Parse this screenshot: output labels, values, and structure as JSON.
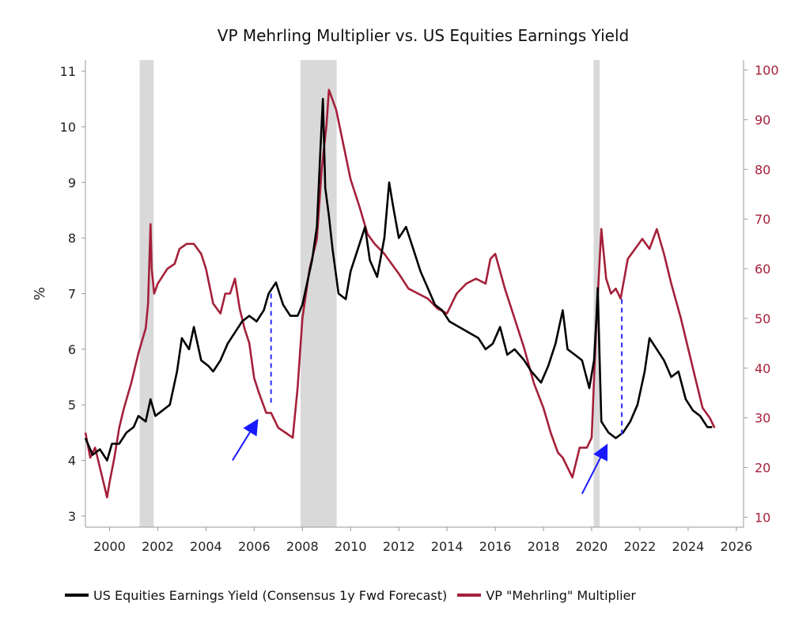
{
  "chart_data": {
    "type": "line",
    "title": "VP Mehrling Multiplier vs. US Equities Earnings Yield",
    "ylabel": "%",
    "y2label": "",
    "ylim": [
      2.8,
      11.2
    ],
    "y2lim": [
      8,
      102
    ],
    "xlim": [
      1999,
      2026.3
    ],
    "x_ticks": [
      2000,
      2002,
      2004,
      2006,
      2008,
      2010,
      2012,
      2014,
      2016,
      2018,
      2020,
      2022,
      2024,
      2026
    ],
    "y_ticks": [
      3,
      4,
      5,
      6,
      7,
      8,
      9,
      10,
      11
    ],
    "y2_ticks": [
      10,
      20,
      30,
      40,
      50,
      60,
      70,
      80,
      90,
      100
    ],
    "recessions": [
      [
        2001.25,
        2001.83
      ],
      [
        2007.92,
        2009.42
      ],
      [
        2020.08,
        2020.33
      ]
    ],
    "legend_position": "bottom",
    "series": [
      {
        "name": "US Equities Earnings Yield (Consensus 1y Fwd Forecast)",
        "axis": "left",
        "color": "#000000",
        "x": [
          1999.0,
          1999.3,
          1999.6,
          1999.9,
          2000.1,
          2000.4,
          2000.7,
          2001.0,
          2001.2,
          2001.5,
          2001.7,
          2001.9,
          2002.2,
          2002.5,
          2002.8,
          2003.0,
          2003.3,
          2003.5,
          2003.8,
          2004.1,
          2004.3,
          2004.6,
          2004.9,
          2005.2,
          2005.5,
          2005.8,
          2006.1,
          2006.4,
          2006.6,
          2006.9,
          2007.2,
          2007.5,
          2007.8,
          2008.0,
          2008.2,
          2008.4,
          2008.6,
          2008.75,
          2008.85,
          2008.95,
          2009.1,
          2009.25,
          2009.5,
          2009.8,
          2010.0,
          2010.3,
          2010.6,
          2010.8,
          2011.1,
          2011.4,
          2011.6,
          2011.75,
          2012.0,
          2012.3,
          2012.6,
          2012.9,
          2013.2,
          2013.5,
          2013.8,
          2014.1,
          2014.5,
          2014.9,
          2015.3,
          2015.6,
          2015.9,
          2016.2,
          2016.5,
          2016.8,
          2017.2,
          2017.5,
          2017.9,
          2018.2,
          2018.5,
          2018.8,
          2019.0,
          2019.3,
          2019.6,
          2019.9,
          2020.1,
          2020.2,
          2020.25,
          2020.4,
          2020.7,
          2021.0,
          2021.3,
          2021.6,
          2021.9,
          2022.2,
          2022.4,
          2022.7,
          2023.0,
          2023.3,
          2023.6,
          2023.9,
          2024.2,
          2024.5,
          2024.8,
          2025.0
        ],
        "values": [
          4.4,
          4.1,
          4.2,
          4.0,
          4.3,
          4.3,
          4.5,
          4.6,
          4.8,
          4.7,
          5.1,
          4.8,
          4.9,
          5.0,
          5.6,
          6.2,
          6.0,
          6.4,
          5.8,
          5.7,
          5.6,
          5.8,
          6.1,
          6.3,
          6.5,
          6.6,
          6.5,
          6.7,
          7.0,
          7.2,
          6.8,
          6.6,
          6.6,
          6.8,
          7.2,
          7.6,
          8.2,
          9.6,
          10.5,
          8.9,
          8.4,
          7.8,
          7.0,
          6.9,
          7.4,
          7.8,
          8.2,
          7.6,
          7.3,
          8.0,
          9.0,
          8.6,
          8.0,
          8.2,
          7.8,
          7.4,
          7.1,
          6.8,
          6.7,
          6.5,
          6.4,
          6.3,
          6.2,
          6.0,
          6.1,
          6.4,
          5.9,
          6.0,
          5.8,
          5.6,
          5.4,
          5.7,
          6.1,
          6.7,
          6.0,
          5.9,
          5.8,
          5.3,
          5.8,
          6.6,
          7.1,
          4.7,
          4.5,
          4.4,
          4.5,
          4.7,
          5.0,
          5.6,
          6.2,
          6.0,
          5.8,
          5.5,
          5.6,
          5.1,
          4.9,
          4.8,
          4.6,
          4.6
        ]
      },
      {
        "name": "VP \"Mehrling\" Multiplier",
        "axis": "right",
        "color": "#a5203a",
        "x": [
          1999.0,
          1999.2,
          1999.4,
          1999.6,
          1999.9,
          2000.0,
          2000.2,
          2000.4,
          2000.6,
          2000.9,
          2001.2,
          2001.5,
          2001.6,
          2001.7,
          2001.75,
          2001.85,
          2002.0,
          2002.4,
          2002.7,
          2002.9,
          2003.2,
          2003.5,
          2003.8,
          2004.0,
          2004.3,
          2004.6,
          2004.8,
          2005.0,
          2005.2,
          2005.4,
          2005.6,
          2005.8,
          2006.0,
          2006.2,
          2006.5,
          2006.7,
          2007.0,
          2007.3,
          2007.6,
          2007.8,
          2008.0,
          2008.3,
          2008.6,
          2008.8,
          2009.0,
          2009.1,
          2009.4,
          2009.7,
          2010.0,
          2010.4,
          2010.7,
          2011.0,
          2011.4,
          2011.7,
          2012.0,
          2012.4,
          2012.8,
          2013.2,
          2013.6,
          2014.0,
          2014.4,
          2014.8,
          2015.2,
          2015.6,
          2015.8,
          2016.0,
          2016.4,
          2016.8,
          2017.2,
          2017.6,
          2018.0,
          2018.3,
          2018.6,
          2018.8,
          2019.0,
          2019.2,
          2019.5,
          2019.8,
          2020.0,
          2020.2,
          2020.4,
          2020.6,
          2020.8,
          2021.0,
          2021.2,
          2021.5,
          2021.8,
          2022.1,
          2022.4,
          2022.7,
          2023.0,
          2023.3,
          2023.7,
          2024.0,
          2024.3,
          2024.6,
          2024.9,
          2025.1
        ],
        "values": [
          27,
          22,
          24,
          20,
          14,
          17,
          22,
          28,
          32,
          37,
          43,
          48,
          53,
          69,
          60,
          55,
          57,
          60,
          61,
          64,
          65,
          65,
          63,
          60,
          53,
          51,
          55,
          55,
          58,
          52,
          48,
          45,
          38,
          35,
          31,
          31,
          28,
          27,
          26,
          36,
          50,
          60,
          66,
          80,
          89,
          96,
          92,
          85,
          78,
          72,
          67,
          65,
          63,
          61,
          59,
          56,
          55,
          54,
          52,
          51,
          55,
          57,
          58,
          57,
          62,
          63,
          56,
          50,
          44,
          37,
          32,
          27,
          23,
          22,
          20,
          18,
          24,
          24,
          26,
          50,
          68,
          58,
          55,
          56,
          54,
          62,
          64,
          66,
          64,
          68,
          63,
          57,
          50,
          44,
          38,
          32,
          30,
          28
        ]
      }
    ],
    "annotations": {
      "dashed_lines": [
        {
          "x": 2006.7,
          "y_from": 7.0,
          "y_to": 5.0
        },
        {
          "x": 2021.25,
          "y_from": 6.9,
          "y_to": 4.45
        }
      ],
      "arrows": [
        {
          "x_from": 2005.1,
          "y_from": 4.0,
          "x_to": 2006.1,
          "y_to": 4.7
        },
        {
          "x_from": 2019.6,
          "y_from": 3.4,
          "x_to": 2020.6,
          "y_to": 4.25
        }
      ]
    }
  }
}
